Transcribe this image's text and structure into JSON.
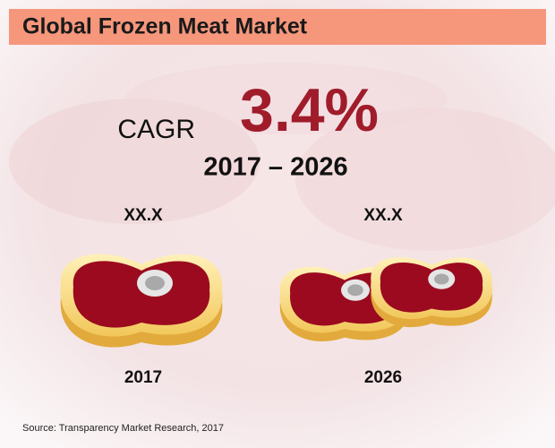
{
  "header": {
    "title": "Global Frozen Meat Market"
  },
  "cagr": {
    "label": "CAGR",
    "value": "3.4%",
    "period": "2017 – 2026"
  },
  "items": [
    {
      "value_label": "XX.X",
      "year": "2017"
    },
    {
      "value_label": "XX.X",
      "year": "2026"
    }
  ],
  "footer": {
    "source": "Source: Transparency Market Research, 2017"
  }
}
